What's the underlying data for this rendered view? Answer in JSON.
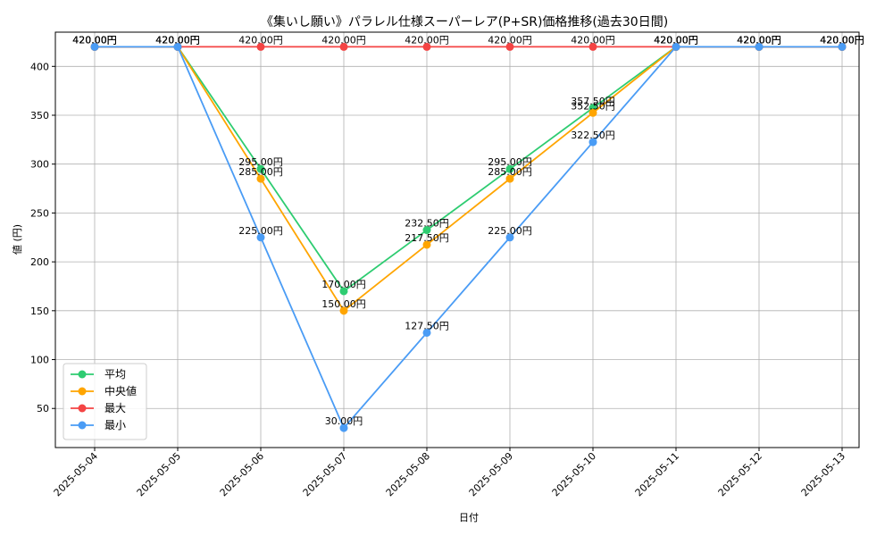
{
  "chart_data": {
    "type": "line",
    "title": "《集いし願い》パラレル仕様スーパーレア(P+SR)価格推移(過去30日間)",
    "xlabel": "日付",
    "ylabel": "値 (円)",
    "ylim": [
      10,
      435
    ],
    "yticks": [
      50,
      100,
      150,
      200,
      250,
      300,
      350,
      400
    ],
    "grid": true,
    "legend_position": "bottom-left",
    "label_suffix": "円",
    "categories": [
      "2025-05-04",
      "2025-05-05",
      "2025-05-06",
      "2025-05-07",
      "2025-05-08",
      "2025-05-09",
      "2025-05-10",
      "2025-05-11",
      "2025-05-12",
      "2025-05-13"
    ],
    "series": [
      {
        "name": "平均",
        "color": "#2ecc71",
        "values": [
          420,
          420,
          295,
          170,
          232.5,
          295,
          357.5,
          420,
          420,
          420
        ]
      },
      {
        "name": "中央値",
        "color": "#ffa500",
        "values": [
          420,
          420,
          285,
          150,
          217.5,
          285,
          352.5,
          420,
          420,
          420
        ]
      },
      {
        "name": "最大",
        "color": "#f44444",
        "values": [
          420,
          420,
          420,
          420,
          420,
          420,
          420,
          420,
          420,
          420
        ]
      },
      {
        "name": "最小",
        "color": "#4a9cf5",
        "values": [
          420,
          420,
          225,
          30,
          127.5,
          225,
          322.5,
          420,
          420,
          420
        ]
      }
    ]
  }
}
